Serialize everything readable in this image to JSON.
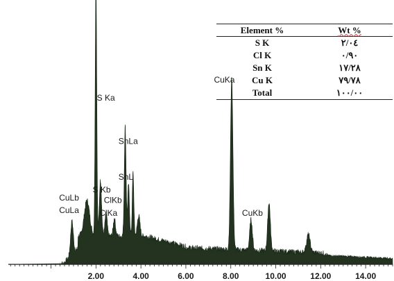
{
  "chart_data": {
    "type": "line",
    "title": "",
    "xlabel": "",
    "ylabel": "",
    "xlim": [
      -1.9,
      15.2
    ],
    "ylim": [
      0,
      100
    ],
    "x_ticks": [
      "2.00",
      "4.00",
      "6.00",
      "8.00",
      "10.00",
      "12.00",
      "14.00"
    ],
    "x_tick_values": [
      2,
      4,
      6,
      8,
      10,
      12,
      14
    ],
    "grid": false,
    "fill": "#233320",
    "baseline_level": 5,
    "peaks": [
      {
        "x": 0.93,
        "height": 13,
        "width": 0.06
      },
      {
        "x": 1.6,
        "height": 14,
        "width": 0.12
      },
      {
        "x": 2.0,
        "height": 100,
        "width": 0.035
      },
      {
        "x": 2.2,
        "height": 22,
        "width": 0.05
      },
      {
        "x": 2.45,
        "height": 9,
        "width": 0.05
      },
      {
        "x": 2.82,
        "height": 7,
        "width": 0.05
      },
      {
        "x": 3.3,
        "height": 43,
        "width": 0.04
      },
      {
        "x": 3.45,
        "height": 20,
        "width": 0.04
      },
      {
        "x": 3.65,
        "height": 25,
        "width": 0.035
      },
      {
        "x": 3.9,
        "height": 8,
        "width": 0.06
      },
      {
        "x": 8.04,
        "height": 67,
        "width": 0.055
      },
      {
        "x": 8.9,
        "height": 12,
        "width": 0.06
      },
      {
        "x": 9.7,
        "height": 19,
        "width": 0.06
      },
      {
        "x": 11.45,
        "height": 7,
        "width": 0.08
      }
    ],
    "annotations": [
      {
        "text": "S Ka",
        "x": 2.04,
        "y": 64
      },
      {
        "text": "SnLa",
        "x": 3.0,
        "y": 47
      },
      {
        "text": "SnL",
        "x": 3.0,
        "y": 33
      },
      {
        "text": "S Kb",
        "x": 1.85,
        "y": 28
      },
      {
        "text": "ClKb",
        "x": 2.35,
        "y": 24
      },
      {
        "text": "ClKa",
        "x": 2.15,
        "y": 19
      },
      {
        "text": "CuLb",
        "x": 0.36,
        "y": 25
      },
      {
        "text": "CuLa",
        "x": 0.36,
        "y": 20
      },
      {
        "text": "CuKa",
        "x": 7.25,
        "y": 71
      },
      {
        "text": "CuKb",
        "x": 8.5,
        "y": 19
      }
    ]
  },
  "table": {
    "header": {
      "element": "Element %",
      "wt": "Wt %"
    },
    "rows": [
      {
        "element": "S K",
        "wt": "۲/۰٤"
      },
      {
        "element": "Cl K",
        "wt": "۰/۹۰"
      },
      {
        "element": "Sn K",
        "wt": "۱۷/۲۸"
      },
      {
        "element": "Cu K",
        "wt": "۷۹/۷۸"
      },
      {
        "element": "Total",
        "wt": "۱۰۰/۰۰"
      }
    ]
  }
}
